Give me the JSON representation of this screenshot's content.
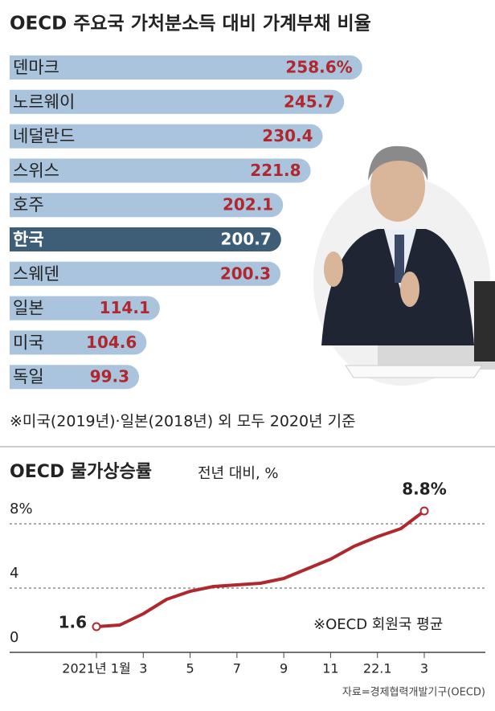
{
  "chart_data": [
    {
      "type": "hbar",
      "title": "OECD 주요국 가처분소득 대비 가계부채 비율",
      "categories": [
        "덴마크",
        "노르웨이",
        "네덜란드",
        "스위스",
        "호주",
        "한국",
        "스웨덴",
        "일본",
        "미국",
        "독일"
      ],
      "values": [
        258.6,
        245.7,
        230.4,
        221.8,
        202.1,
        200.7,
        200.3,
        114.1,
        104.6,
        99.3
      ],
      "value_labels": [
        "258.6%",
        null,
        null,
        null,
        null,
        null,
        null,
        null,
        null,
        null
      ],
      "colors": [
        "#a9c4dc",
        "#a9c4dc",
        "#a9c4dc",
        "#a9c4dc",
        "#a9c4dc",
        "#3e5d76",
        "#a9c4dc",
        "#a9c4dc",
        "#a9c4dc",
        "#a9c4dc"
      ],
      "xlim": [
        0,
        350
      ],
      "note": "※미국(2019년)·일본(2018년) 외 모두 2020년 기준"
    },
    {
      "type": "line",
      "title": "OECD 물가상승률",
      "subtitle": "전년 대비, %",
      "categories": [
        "2021년 1월",
        null,
        "3",
        null,
        "5",
        null,
        "7",
        null,
        "9",
        null,
        "11",
        null,
        "22.1",
        null,
        "3"
      ],
      "series": [
        {
          "name": null,
          "color": "#b0282e",
          "values": [
            1.6,
            1.7,
            2.4,
            3.3,
            3.8,
            4.1,
            4.2,
            4.3,
            4.6,
            5.2,
            5.8,
            6.6,
            7.2,
            7.7,
            8.8
          ],
          "value_labels": [
            null,
            null,
            null,
            null,
            null,
            null,
            null,
            null,
            null,
            null,
            null,
            null,
            null,
            null,
            "8.8%"
          ]
        }
      ],
      "ylim": [
        0,
        9.5
      ],
      "yticks": [
        0,
        4,
        {
          "value": 8,
          "label": "8%"
        }
      ],
      "grid": true,
      "annotation": "※OECD 회원국 평균",
      "source": "자료=경제협력개발기구(OECD)"
    }
  ]
}
